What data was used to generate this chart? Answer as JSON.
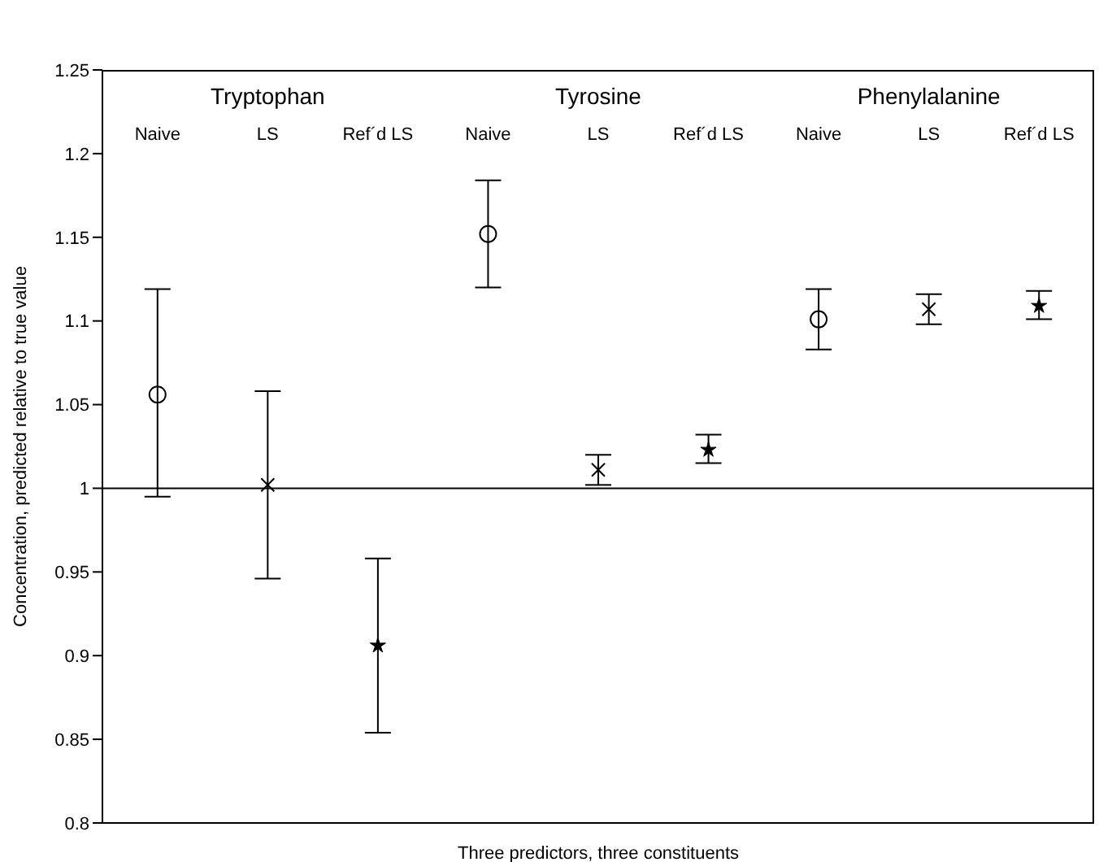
{
  "chart_data": {
    "type": "scatter",
    "xlabel": "Three predictors,   three constituents",
    "ylabel": "Concentration,  predicted relative to true value",
    "categories": [
      null,
      null,
      null,
      null,
      null,
      null,
      null,
      null,
      null
    ],
    "series": [
      {
        "color": "#000000",
        "marker": "circle",
        "values": [
          1.056,
          null,
          null,
          1.152,
          null,
          null,
          1.101,
          null,
          null
        ],
        "errors": [
          [
            0.995,
            1.119
          ],
          null,
          null,
          [
            1.12,
            1.184
          ],
          null,
          null,
          [
            1.083,
            1.119
          ],
          null,
          null
        ]
      },
      {
        "color": "#000000",
        "marker": "cross",
        "values": [
          null,
          1.002,
          null,
          null,
          1.011,
          null,
          null,
          1.107,
          null
        ],
        "errors": [
          null,
          [
            0.946,
            1.058
          ],
          null,
          null,
          [
            1.002,
            1.02
          ],
          null,
          null,
          [
            1.098,
            1.116
          ],
          null
        ]
      },
      {
        "color": "#000000",
        "marker": "star",
        "values": [
          null,
          null,
          0.906,
          null,
          null,
          1.023,
          null,
          null,
          1.109
        ],
        "errors": [
          null,
          null,
          [
            0.854,
            0.958
          ],
          null,
          null,
          [
            1.015,
            1.032
          ],
          null,
          null,
          [
            1.101,
            1.118
          ]
        ]
      }
    ],
    "ylim": [
      0.8,
      1.25
    ],
    "yticks": [
      0.8,
      0.85,
      0.9,
      0.95,
      1,
      1.05,
      1.1,
      1.15,
      1.2,
      1.25
    ],
    "ref_lines": [
      {
        "axis": "y",
        "value": 1,
        "color": "#000000"
      }
    ],
    "tick_labels": "y",
    "grid": false,
    "legend": false,
    "annotations": [
      "Tryptophan",
      "Tyrosine",
      "Phenylalanine",
      "Naive",
      "LS",
      "Ref´d LS",
      "Naive",
      "LS",
      "Ref´d LS",
      "Naive",
      "LS",
      "Ref´d LS"
    ]
  }
}
